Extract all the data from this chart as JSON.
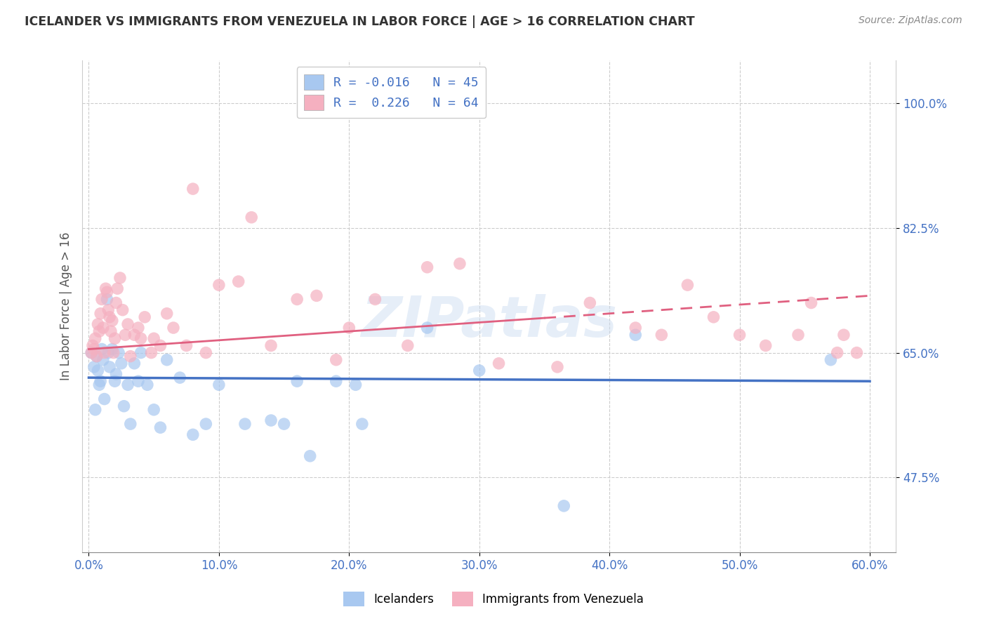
{
  "title": "ICELANDER VS IMMIGRANTS FROM VENEZUELA IN LABOR FORCE | AGE > 16 CORRELATION CHART",
  "source": "Source: ZipAtlas.com",
  "xlabel_vals": [
    0.0,
    10.0,
    20.0,
    30.0,
    40.0,
    50.0,
    60.0
  ],
  "ylabel": "In Labor Force | Age > 16",
  "ylabel_vals": [
    47.5,
    65.0,
    82.5,
    100.0
  ],
  "xlim": [
    -0.5,
    62.0
  ],
  "ylim": [
    37.0,
    106.0
  ],
  "r_blue": "-0.016",
  "n_blue": "45",
  "r_pink": "0.226",
  "n_pink": "64",
  "blue_color": "#a8c8f0",
  "pink_color": "#f5b0c0",
  "blue_line_color": "#4472c4",
  "pink_line_color": "#e06080",
  "watermark": "ZIPatlas",
  "legend_label_blue": "Icelanders",
  "legend_label_pink": "Immigrants from Venezuela",
  "blue_scatter_x": [
    0.2,
    0.4,
    0.5,
    0.6,
    0.7,
    0.8,
    0.9,
    1.0,
    1.1,
    1.2,
    1.4,
    1.5,
    1.6,
    1.8,
    2.0,
    2.1,
    2.3,
    2.5,
    2.7,
    3.0,
    3.2,
    3.5,
    3.8,
    4.0,
    4.5,
    5.0,
    5.5,
    6.0,
    7.0,
    8.0,
    9.0,
    10.0,
    12.0,
    14.0,
    15.0,
    16.0,
    17.0,
    19.0,
    20.5,
    21.0,
    26.0,
    30.0,
    36.5,
    42.0,
    57.0
  ],
  "blue_scatter_y": [
    65.0,
    63.0,
    57.0,
    64.5,
    62.5,
    60.5,
    61.0,
    65.5,
    64.0,
    58.5,
    72.5,
    65.0,
    63.0,
    65.5,
    61.0,
    62.0,
    65.0,
    63.5,
    57.5,
    60.5,
    55.0,
    63.5,
    61.0,
    65.0,
    60.5,
    57.0,
    54.5,
    64.0,
    61.5,
    53.5,
    55.0,
    60.5,
    55.0,
    55.5,
    55.0,
    61.0,
    50.5,
    61.0,
    60.5,
    55.0,
    68.5,
    62.5,
    43.5,
    67.5,
    64.0
  ],
  "pink_scatter_x": [
    0.2,
    0.3,
    0.4,
    0.5,
    0.6,
    0.7,
    0.8,
    0.9,
    1.0,
    1.1,
    1.2,
    1.3,
    1.4,
    1.5,
    1.6,
    1.7,
    1.8,
    1.9,
    2.0,
    2.1,
    2.2,
    2.4,
    2.6,
    2.8,
    3.0,
    3.2,
    3.5,
    3.8,
    4.0,
    4.3,
    4.8,
    5.0,
    5.5,
    6.0,
    6.5,
    7.5,
    8.0,
    9.0,
    10.0,
    11.5,
    12.5,
    14.0,
    16.0,
    17.5,
    19.0,
    20.0,
    22.0,
    24.5,
    26.0,
    28.5,
    31.5,
    36.0,
    38.5,
    42.0,
    44.0,
    46.0,
    48.0,
    50.0,
    52.0,
    54.5,
    55.5,
    57.5,
    58.0,
    59.0
  ],
  "pink_scatter_y": [
    65.0,
    66.0,
    65.5,
    67.0,
    64.5,
    69.0,
    68.0,
    70.5,
    72.5,
    68.5,
    65.0,
    74.0,
    73.5,
    71.0,
    70.0,
    68.0,
    69.5,
    65.0,
    67.0,
    72.0,
    74.0,
    75.5,
    71.0,
    67.5,
    69.0,
    64.5,
    67.5,
    68.5,
    67.0,
    70.0,
    65.0,
    67.0,
    66.0,
    70.5,
    68.5,
    66.0,
    88.0,
    65.0,
    74.5,
    75.0,
    84.0,
    66.0,
    72.5,
    73.0,
    64.0,
    68.5,
    72.5,
    66.0,
    77.0,
    77.5,
    63.5,
    63.0,
    72.0,
    68.5,
    67.5,
    74.5,
    70.0,
    67.5,
    66.0,
    67.5,
    72.0,
    65.0,
    67.5,
    65.0
  ],
  "blue_line_y0": 61.5,
  "blue_line_y1": 61.0,
  "pink_line_y0": 65.5,
  "pink_line_y1": 73.0,
  "pink_solid_x_end": 35.0
}
